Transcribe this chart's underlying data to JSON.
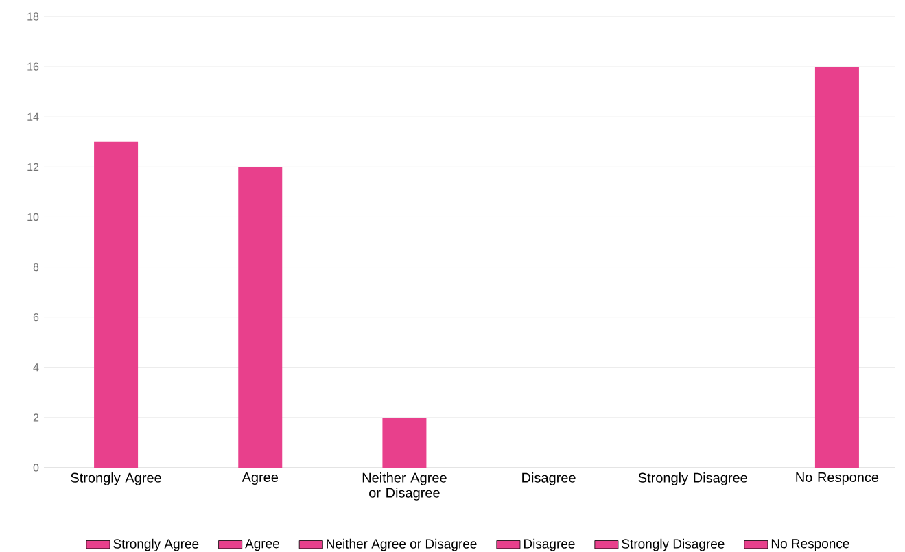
{
  "chart_data": {
    "type": "bar",
    "categories": [
      "Strongly Agree",
      "Agree",
      "Neither Agree or Disagree",
      "Disagree",
      "Strongly Disagree",
      "No Responce"
    ],
    "series": [
      {
        "name": "Strongly Agree",
        "color": "#e8408c",
        "values": [
          13,
          null,
          null,
          null,
          null,
          null
        ]
      },
      {
        "name": "Agree",
        "color": "#e8408c",
        "values": [
          null,
          12,
          null,
          null,
          null,
          null
        ]
      },
      {
        "name": "Neither Agree or Disagree",
        "color": "#e8408c",
        "values": [
          null,
          null,
          2,
          null,
          null,
          null
        ]
      },
      {
        "name": "Disagree",
        "color": "#e8408c",
        "values": [
          null,
          null,
          null,
          0,
          null,
          null
        ]
      },
      {
        "name": "Strongly Disagree",
        "color": "#e8408c",
        "values": [
          null,
          null,
          null,
          null,
          0,
          null
        ]
      },
      {
        "name": "No Responce",
        "color": "#e8408c",
        "values": [
          null,
          null,
          null,
          null,
          null,
          16
        ]
      }
    ],
    "ylim": [
      0,
      18
    ],
    "yticks": [
      0,
      2,
      4,
      6,
      8,
      10,
      12,
      14,
      16,
      18
    ],
    "grid": "y",
    "legend": "bottom"
  }
}
